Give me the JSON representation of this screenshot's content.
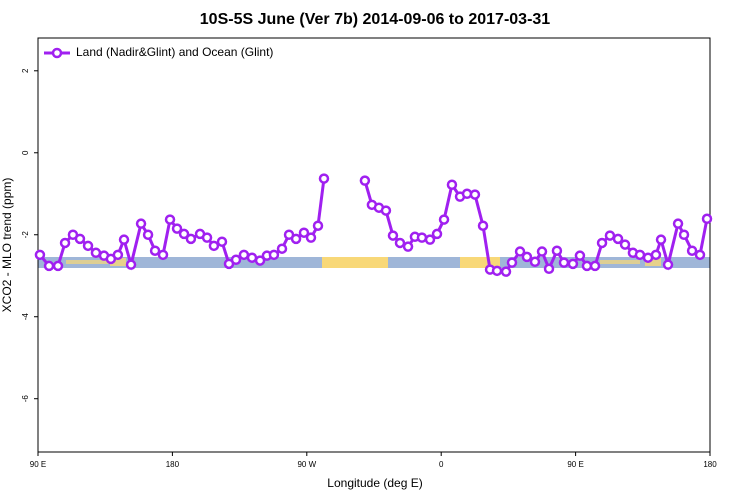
{
  "chart_data": {
    "type": "line",
    "title": "10S-5S June (Ver 7b)   2014-09-06 to 2017-03-31",
    "x_label": "Longitude (deg E)",
    "y_label": "XCO2 - MLO trend (ppm)",
    "xlim": [
      90,
      540
    ],
    "xticks": [
      {
        "value": 90,
        "label": "90 E"
      },
      180,
      {
        "value": 270,
        "label": "90 W"
      },
      {
        "value": 360,
        "label": "0"
      },
      {
        "value": 450,
        "label": "90 E"
      },
      {
        "value": 540,
        "label": "180"
      }
    ],
    "ylim": [
      -7.3,
      2.8
    ],
    "yticks": [
      -6,
      -4,
      -2,
      0,
      2
    ],
    "legend": "top-left",
    "x": [
      91.3,
      97.4,
      103.4,
      108.1,
      113.4,
      118.1,
      123.5,
      128.8,
      134.2,
      138.8,
      143.5,
      147.6,
      152.3,
      159.0,
      163.7,
      168.4,
      173.7,
      178.4,
      183.1,
      187.8,
      192.4,
      198.5,
      203.2,
      207.8,
      213.2,
      217.9,
      222.6,
      227.9,
      233.3,
      238.7,
      243.3,
      248.0,
      253.4,
      258.1,
      262.8,
      268.1,
      272.8,
      277.5,
      281.5,
      295.0,
      308.9,
      313.6,
      318.3,
      323.0,
      327.7,
      332.4,
      337.8,
      342.4,
      347.1,
      352.5,
      357.2,
      361.9,
      367.2,
      372.6,
      377.3,
      382.6,
      388.0,
      392.7,
      397.4,
      403.4,
      407.4,
      412.8,
      417.4,
      422.8,
      427.5,
      432.2,
      437.5,
      442.2,
      448.2,
      452.9,
      457.6,
      463.0,
      467.7,
      473.0,
      478.4,
      483.1,
      488.4,
      493.1,
      498.5,
      503.8,
      507.2,
      511.9,
      518.6,
      522.6,
      528.0,
      533.3,
      538.0
    ],
    "series": [
      {
        "name": "Land (Nadir&Glint) and Ocean (Glint)",
        "color": "#a020f0",
        "values": [
          -2.49,
          -2.76,
          -2.76,
          -2.2,
          -2.0,
          -2.1,
          -2.27,
          -2.44,
          -2.51,
          -2.59,
          -2.49,
          -2.12,
          -2.73,
          -1.73,
          -2.0,
          -2.39,
          -2.49,
          -1.63,
          -1.85,
          -1.98,
          -2.1,
          -1.98,
          -2.07,
          -2.27,
          -2.17,
          -2.71,
          -2.61,
          -2.49,
          -2.56,
          -2.63,
          -2.51,
          -2.49,
          -2.34,
          -2.0,
          -2.1,
          -1.95,
          -2.07,
          -1.78,
          -0.63,
          null,
          -0.68,
          -1.27,
          -1.34,
          -1.41,
          -2.02,
          -2.2,
          -2.29,
          -2.05,
          -2.07,
          -2.12,
          -1.98,
          -1.63,
          -0.78,
          -1.07,
          -1.0,
          -1.02,
          -1.78,
          -2.85,
          -2.88,
          -2.9,
          -2.68,
          -2.41,
          -2.54,
          -2.66,
          -2.41,
          -2.83,
          -2.39,
          -2.68,
          -2.71,
          -2.51,
          -2.76,
          -2.76,
          -2.2,
          -2.02,
          -2.1,
          -2.24,
          -2.44,
          -2.49,
          -2.56,
          -2.49,
          -2.12,
          -2.73,
          -1.73,
          -2.0,
          -2.39,
          -2.49,
          -1.61
        ]
      }
    ]
  }
}
